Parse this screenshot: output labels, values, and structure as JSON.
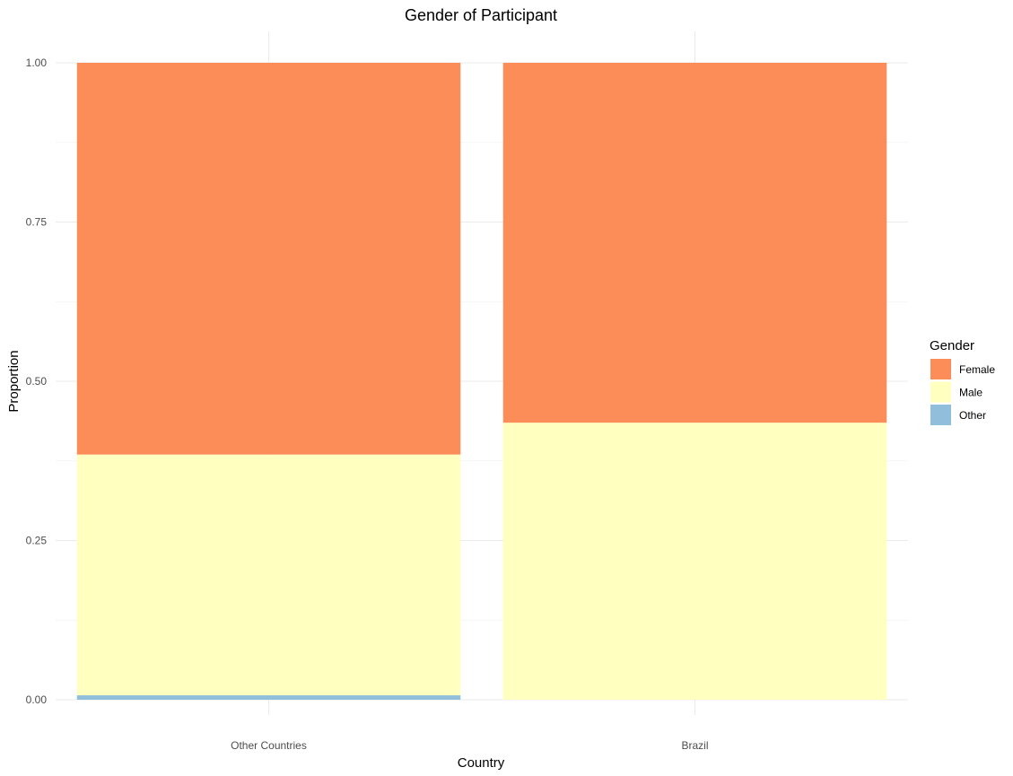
{
  "chart_data": {
    "type": "bar",
    "stacked": true,
    "title": "Gender of Participant",
    "xlabel": "Country",
    "ylabel": "Proportion",
    "categories": [
      "Other Countries",
      "Brazil"
    ],
    "series": [
      {
        "name": "Other",
        "color": "#91bfdb",
        "values": [
          0.007,
          0.0
        ]
      },
      {
        "name": "Male",
        "color": "#ffffbf",
        "values": [
          0.378,
          0.435
        ]
      },
      {
        "name": "Female",
        "color": "#fc8d59",
        "values": [
          0.615,
          0.565
        ]
      }
    ],
    "legend": {
      "title": "Gender",
      "position": "right",
      "entries": [
        "Female",
        "Male",
        "Other"
      ]
    },
    "ylim": [
      0,
      1
    ],
    "yticks": [
      {
        "value": 0,
        "label": "0.00"
      },
      {
        "value": 0.25,
        "label": "0.25"
      },
      {
        "value": 0.5,
        "label": "0.50"
      },
      {
        "value": 0.75,
        "label": "0.75"
      },
      {
        "value": 1,
        "label": "1.00"
      }
    ],
    "grid": true
  }
}
